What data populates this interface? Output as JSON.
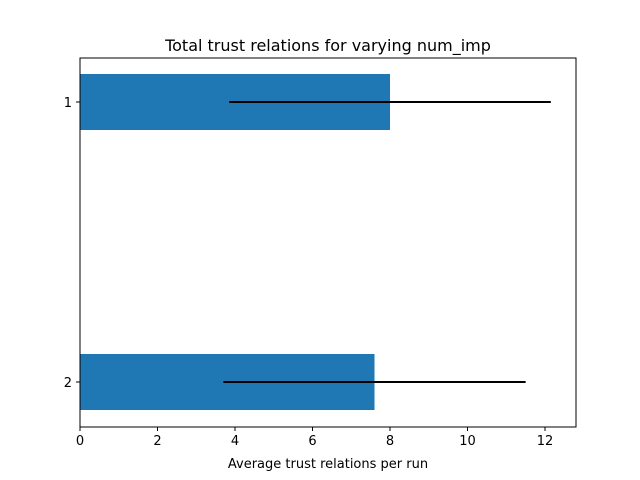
{
  "chart_data": {
    "type": "bar",
    "orientation": "horizontal",
    "title": "Total trust relations for varying num_imp",
    "xlabel": "Average trust relations per run",
    "ylabel": "",
    "categories": [
      "1",
      "2"
    ],
    "values": [
      8.0,
      7.6
    ],
    "errors": [
      4.15,
      3.9
    ],
    "xlim": [
      0,
      12.8
    ],
    "x_ticks": [
      0,
      2,
      4,
      6,
      8,
      10,
      12
    ],
    "bar_color": "#1f77b4",
    "error_color": "#000000",
    "grid": false,
    "legend": "none"
  }
}
